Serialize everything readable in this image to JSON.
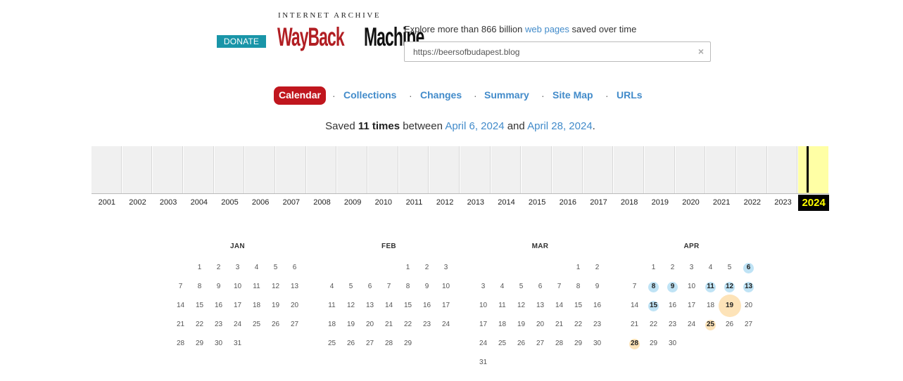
{
  "header": {
    "donate_label": "DONATE",
    "logo_top": "INTERNET ARCHIVE",
    "logo_word_1": "WayBack",
    "logo_word_2": "Machine",
    "tagline_prefix": "Explore more than 866 billion",
    "tagline_link": "web pages",
    "tagline_suffix": "saved over time",
    "search_value": "https://beersofbudapest.blog",
    "clear_icon": "×"
  },
  "tabs": [
    {
      "label": "Calendar",
      "active": true
    },
    {
      "label": "Collections",
      "active": false
    },
    {
      "label": "Changes",
      "active": false
    },
    {
      "label": "Summary",
      "active": false
    },
    {
      "label": "Site Map",
      "active": false
    },
    {
      "label": "URLs",
      "active": false
    }
  ],
  "tab_separator": "·",
  "saved": {
    "prefix": "Saved",
    "count": "11 times",
    "between": "between",
    "first": "April 6, 2024",
    "and": "and",
    "last": "April 28, 2024",
    "period": "."
  },
  "timeline": {
    "years": [
      "2001",
      "2002",
      "2003",
      "2004",
      "2005",
      "2006",
      "2007",
      "2008",
      "2009",
      "2010",
      "2011",
      "2012",
      "2013",
      "2014",
      "2015",
      "2016",
      "2017",
      "2018",
      "2019",
      "2020",
      "2021",
      "2022",
      "2023",
      "2024"
    ],
    "current": "2024"
  },
  "calendar": {
    "months": [
      {
        "name": "JAN",
        "start_weekday": 1,
        "days": 31,
        "snapshots": []
      },
      {
        "name": "FEB",
        "start_weekday": 4,
        "days": 29,
        "snapshots": []
      },
      {
        "name": "MAR",
        "start_weekday": 5,
        "days": 31,
        "snapshots": []
      },
      {
        "name": "APR",
        "start_weekday": 1,
        "days": 30,
        "snapshots": [
          {
            "day": 6,
            "status": "ok",
            "count": 1
          },
          {
            "day": 8,
            "status": "ok",
            "count": 1
          },
          {
            "day": 9,
            "status": "ok",
            "count": 1
          },
          {
            "day": 11,
            "status": "ok",
            "count": 1
          },
          {
            "day": 12,
            "status": "ok",
            "count": 1
          },
          {
            "day": 13,
            "status": "ok",
            "count": 1
          },
          {
            "day": 15,
            "status": "ok",
            "count": 1
          },
          {
            "day": 19,
            "status": "redirect",
            "count": 2
          },
          {
            "day": 25,
            "status": "redirect",
            "count": 1
          },
          {
            "day": 28,
            "status": "redirect",
            "count": 1
          }
        ]
      }
    ]
  },
  "colors": {
    "tab_active": "#c0161e",
    "link": "#428bca",
    "donate": "#1995a8",
    "snapshot_ok": "#bfe3f5",
    "snapshot_redirect": "#fde3b8",
    "year_current_bg": "#ffffa5"
  }
}
